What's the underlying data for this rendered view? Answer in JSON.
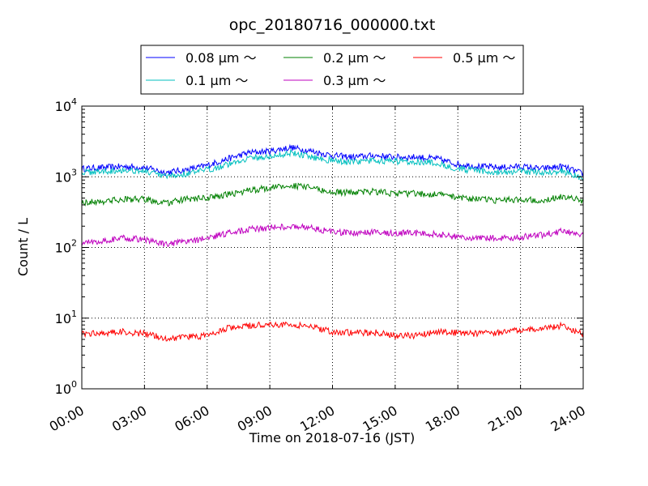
{
  "chart_data": {
    "type": "line",
    "title": "opc_20180716_000000.txt",
    "xlabel": "Time on 2018-07-16 (JST)",
    "ylabel": "Count / L",
    "yscale": "log",
    "ylim": [
      1,
      10000
    ],
    "xlim": [
      "00:00",
      "24:00"
    ],
    "grid": true,
    "legend_position": "top",
    "x_tick_labels": [
      "00:00",
      "03:00",
      "06:00",
      "09:00",
      "12:00",
      "15:00",
      "18:00",
      "21:00",
      "24:00"
    ],
    "y_tick_labels": [
      {
        "base": "10",
        "exp": "0"
      },
      {
        "base": "10",
        "exp": "1"
      },
      {
        "base": "10",
        "exp": "2"
      },
      {
        "base": "10",
        "exp": "3"
      },
      {
        "base": "10",
        "exp": "4"
      }
    ],
    "x": [
      "00:00",
      "01:00",
      "02:00",
      "03:00",
      "04:00",
      "05:00",
      "06:00",
      "07:00",
      "08:00",
      "09:00",
      "10:00",
      "11:00",
      "12:00",
      "13:00",
      "14:00",
      "15:00",
      "16:00",
      "17:00",
      "18:00",
      "19:00",
      "20:00",
      "21:00",
      "22:00",
      "23:00",
      "24:00"
    ],
    "series": [
      {
        "name": "0.08 μm ～",
        "color": "#0000ff",
        "values": [
          1300,
          1350,
          1400,
          1350,
          1150,
          1250,
          1450,
          1800,
          2200,
          2300,
          2600,
          2300,
          2000,
          1900,
          2000,
          1900,
          1900,
          1800,
          1500,
          1400,
          1350,
          1400,
          1300,
          1400,
          1100
        ]
      },
      {
        "name": "0.1 μm ～",
        "color": "#00bfbf",
        "values": [
          1150,
          1200,
          1250,
          1200,
          1000,
          1100,
          1250,
          1500,
          1850,
          1900,
          2200,
          1900,
          1700,
          1600,
          1700,
          1650,
          1650,
          1550,
          1300,
          1200,
          1150,
          1200,
          1150,
          1200,
          950
        ]
      },
      {
        "name": "0.2 μm ～",
        "color": "#008000",
        "values": [
          430,
          450,
          480,
          480,
          420,
          480,
          500,
          560,
          640,
          700,
          750,
          700,
          600,
          600,
          620,
          580,
          580,
          560,
          520,
          480,
          460,
          480,
          470,
          520,
          460
        ]
      },
      {
        "name": "0.3 μm ～",
        "color": "#bf00bf",
        "values": [
          115,
          125,
          135,
          130,
          110,
          120,
          135,
          160,
          180,
          190,
          200,
          190,
          165,
          160,
          165,
          160,
          160,
          155,
          140,
          135,
          135,
          140,
          150,
          170,
          150
        ]
      },
      {
        "name": "0.5 μm ～",
        "color": "#ff0000",
        "values": [
          6.0,
          6.2,
          6.4,
          6.0,
          5.2,
          5.4,
          5.6,
          7.2,
          7.8,
          8.2,
          8.0,
          7.6,
          6.4,
          6.2,
          6.3,
          5.6,
          5.7,
          6.4,
          6.2,
          6.0,
          6.2,
          6.8,
          7.0,
          7.8,
          6.0
        ]
      }
    ]
  }
}
